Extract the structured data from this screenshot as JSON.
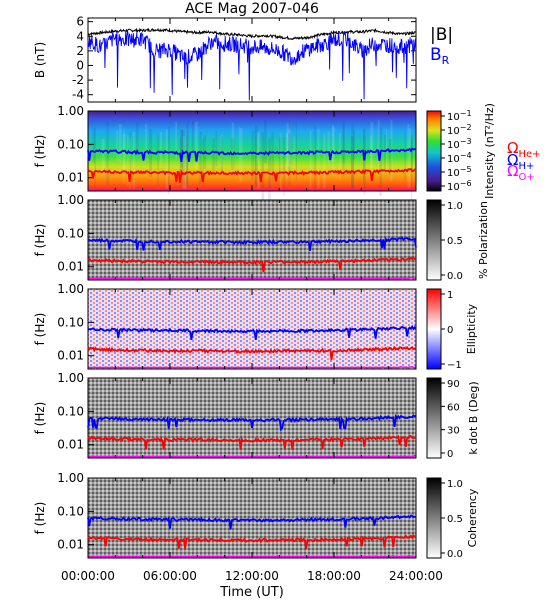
{
  "figure": {
    "title": "ACE Mag 2007-046",
    "xlabel": "Time (UT)",
    "xticks": [
      "00:00:00",
      "06:00:00",
      "12:00:00",
      "18:00:00",
      "24:00:00"
    ]
  },
  "legend": {
    "top": [
      {
        "text": "|B|",
        "color": "#000000"
      },
      {
        "text": "B",
        "sub": "R",
        "color": "#0000ff"
      }
    ],
    "gyro": [
      {
        "sym": "Ω",
        "sub": "H+",
        "color": "#0000ff"
      },
      {
        "sym": "Ω",
        "sub": "He+",
        "color": "#ff0000"
      },
      {
        "sym": "Ω",
        "sub": "O+",
        "color": "#ff00ff"
      }
    ]
  },
  "colorbars": [
    {
      "id": "intensity",
      "label": "Intensity (nT²/Hz)",
      "ticks": [
        {
          "t": "10",
          "e": "−1"
        },
        {
          "t": "10",
          "e": "−2"
        },
        {
          "t": "10",
          "e": "−3"
        },
        {
          "t": "10",
          "e": "−4"
        },
        {
          "t": "10",
          "e": "−5"
        },
        {
          "t": "10",
          "e": "−6"
        }
      ]
    },
    {
      "id": "polarization",
      "label": "% Polarization",
      "ticks": [
        "1.0",
        "0.5",
        "0.0"
      ]
    },
    {
      "id": "ellipticity",
      "label": "Ellipticity",
      "ticks": [
        "1",
        "0",
        "−1"
      ]
    },
    {
      "id": "kdotb",
      "label": "k dot B (Deg)",
      "ticks": [
        "90",
        "60",
        "30",
        "0"
      ]
    },
    {
      "id": "coherency",
      "label": "Coherency",
      "ticks": [
        "1.0",
        "0.5",
        "0.0"
      ]
    }
  ],
  "chart_data": [
    {
      "type": "line",
      "ylabel": "B (nT)",
      "yticks": [
        "6",
        "4",
        "2",
        "0",
        "-2",
        "-4"
      ],
      "ylim": [
        -5,
        6.5
      ],
      "xlim": [
        0,
        24
      ],
      "series": [
        {
          "name": "|B|",
          "color": "#000000",
          "x": [
            0,
            1,
            2,
            3,
            4,
            5,
            6,
            7,
            8,
            9,
            10,
            11,
            12,
            13,
            14,
            15,
            16,
            17,
            18,
            19,
            20,
            21,
            22,
            23,
            24
          ],
          "values": [
            4.3,
            4.5,
            4.7,
            4.8,
            4.8,
            4.9,
            4.8,
            4.6,
            4.5,
            4.6,
            4.3,
            4.2,
            4.0,
            4.1,
            3.9,
            3.7,
            3.8,
            4.2,
            4.5,
            4.6,
            4.6,
            4.8,
            4.5,
            4.3,
            4.5
          ]
        },
        {
          "name": "B_R",
          "color": "#0000ff",
          "x": [
            0,
            1,
            2,
            3,
            4,
            5,
            6,
            7,
            8,
            9,
            10,
            11,
            12,
            13,
            14,
            15,
            16,
            17,
            18,
            19,
            20,
            21,
            22,
            23,
            24
          ],
          "values": [
            3.5,
            2.5,
            3.8,
            3.5,
            3.6,
            2.0,
            2.2,
            1.0,
            1.5,
            3.2,
            3.0,
            2.8,
            2.6,
            2.4,
            2.0,
            1.0,
            2.2,
            2.8,
            3.5,
            3.6,
            2.0,
            3.0,
            2.8,
            2.5,
            3.0
          ]
        }
      ]
    },
    {
      "type": "heatmap",
      "ylabel": "f (Hz)",
      "yscale": "log",
      "ylim": [
        0.004,
        1.0
      ],
      "yticks": [
        "1.00",
        "0.10",
        "0.01"
      ],
      "panels": [
        "Intensity",
        "% Polarization",
        "Ellipticity",
        "k dot B",
        "Coherency"
      ],
      "overlay_series": [
        {
          "name": "Ω_H+",
          "color": "#0000ff",
          "x": [
            0,
            2,
            4,
            6,
            8,
            10,
            12,
            14,
            16,
            18,
            20,
            22,
            24
          ],
          "values": [
            0.062,
            0.06,
            0.058,
            0.057,
            0.056,
            0.055,
            0.054,
            0.055,
            0.056,
            0.058,
            0.06,
            0.065,
            0.07
          ]
        },
        {
          "name": "Ω_He+",
          "color": "#ff0000",
          "x": [
            0,
            2,
            4,
            6,
            8,
            10,
            12,
            14,
            16,
            18,
            20,
            22,
            24
          ],
          "values": [
            0.016,
            0.015,
            0.0145,
            0.014,
            0.014,
            0.0138,
            0.0135,
            0.0138,
            0.014,
            0.0145,
            0.015,
            0.016,
            0.0175
          ]
        },
        {
          "name": "Ω_O+",
          "color": "#ff00ff",
          "x": [
            0,
            2,
            4,
            6,
            8,
            10,
            12,
            14,
            16,
            18,
            20,
            22,
            24
          ],
          "values": [
            0.0042,
            0.0041,
            0.004,
            0.004,
            0.0039,
            0.0039,
            0.0038,
            0.0039,
            0.0039,
            0.004,
            0.0041,
            0.0042,
            0.0044
          ]
        }
      ]
    }
  ]
}
